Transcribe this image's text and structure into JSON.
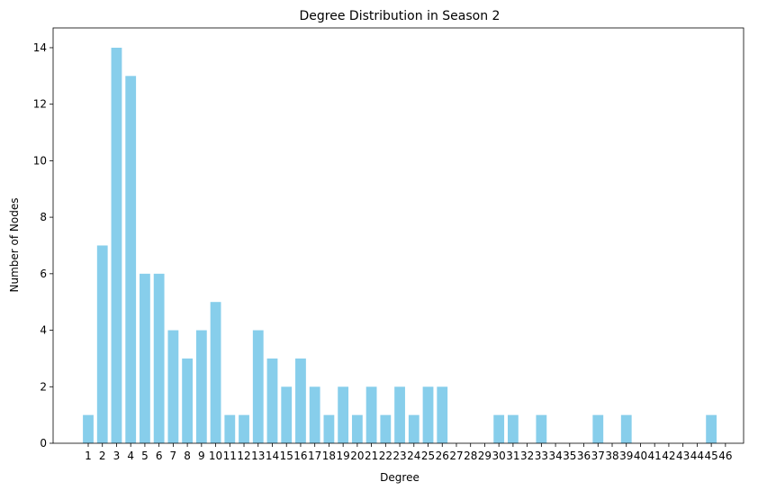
{
  "chart_data": {
    "type": "bar",
    "title": "Degree Distribution in Season 2",
    "xlabel": "Degree",
    "ylabel": "Number of Nodes",
    "categories": [
      "1",
      "2",
      "3",
      "4",
      "5",
      "6",
      "7",
      "8",
      "9",
      "10",
      "11",
      "12",
      "13",
      "14",
      "15",
      "16",
      "17",
      "18",
      "19",
      "20",
      "21",
      "22",
      "23",
      "24",
      "25",
      "26",
      "27",
      "28",
      "29",
      "30",
      "31",
      "32",
      "33",
      "34",
      "35",
      "36",
      "37",
      "38",
      "39",
      "40",
      "41",
      "42",
      "43",
      "44",
      "45",
      "46"
    ],
    "values": [
      1,
      7,
      14,
      13,
      6,
      6,
      4,
      3,
      4,
      5,
      1,
      1,
      4,
      3,
      2,
      3,
      2,
      1,
      2,
      1,
      2,
      1,
      2,
      1,
      2,
      2,
      0,
      0,
      0,
      1,
      1,
      0,
      1,
      0,
      0,
      0,
      1,
      0,
      1,
      0,
      0,
      0,
      0,
      0,
      1,
      0
    ],
    "ylim": [
      0,
      14.7
    ],
    "yticks": [
      0,
      2,
      4,
      6,
      8,
      10,
      12,
      14
    ],
    "bar_color": "#87ceeb",
    "grid": false
  }
}
